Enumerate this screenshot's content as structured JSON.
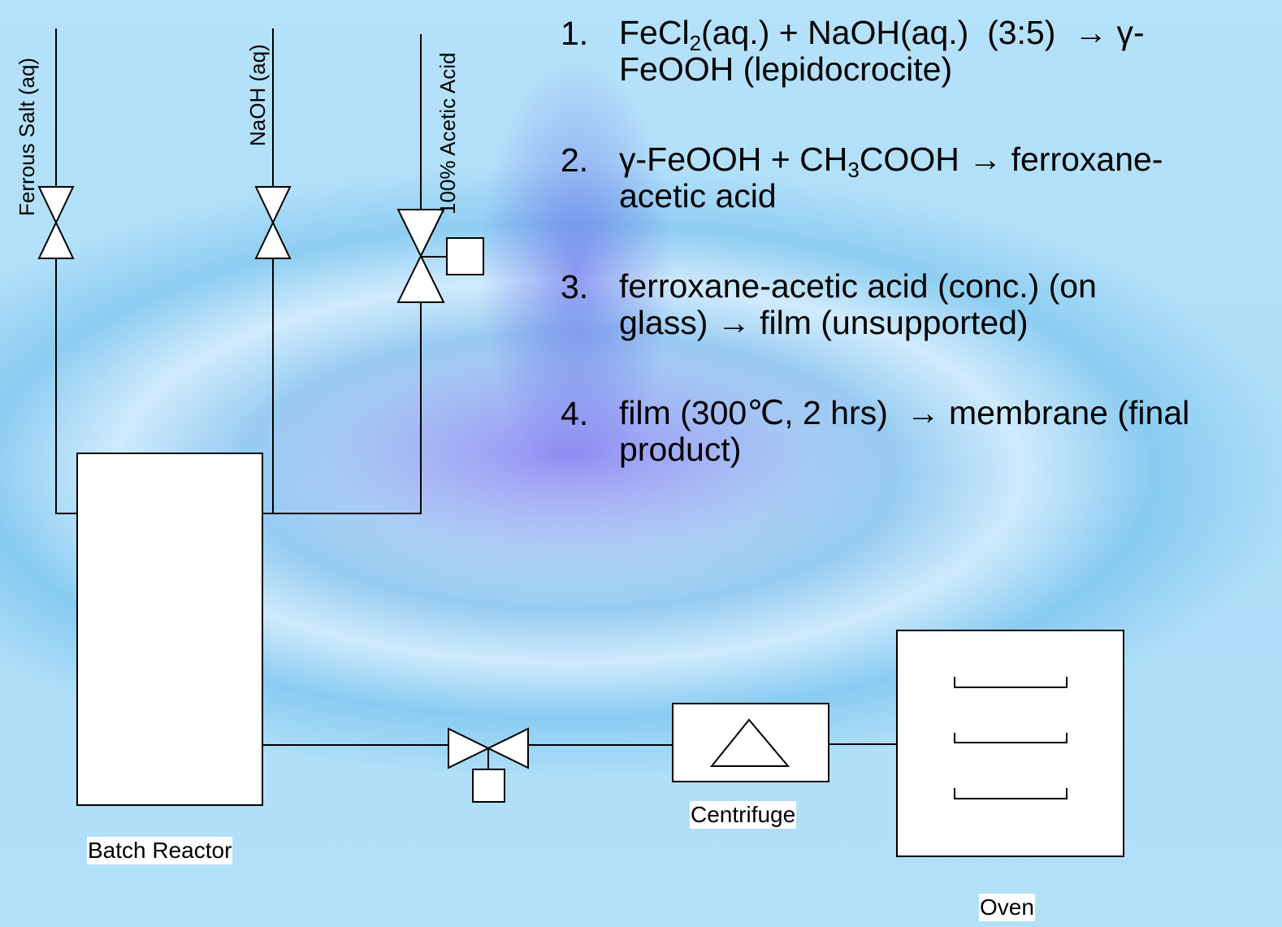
{
  "feeds": [
    {
      "label": "Ferrous Salt (aq)"
    },
    {
      "label": "NaOH (aq)"
    },
    {
      "label": "100% Acetic Acid"
    }
  ],
  "units": {
    "reactor": "Batch Reactor",
    "centrifuge": "Centrifuge",
    "oven": "Oven"
  },
  "steps": [
    {
      "number": "1.",
      "lines": [
        [
          {
            "text": "FeCl"
          },
          {
            "sub": "2"
          },
          {
            "text": "(aq.) + NaOH(aq.)  (3:5)  → γ-"
          }
        ],
        [
          {
            "text": "FeOOH (lepidocrocite)"
          }
        ]
      ]
    },
    {
      "number": "2.",
      "lines": [
        [
          {
            "text": "γ-FeOOH + CH"
          },
          {
            "sub": "3"
          },
          {
            "text": "COOH → ferroxane-"
          }
        ],
        [
          {
            "text": "acetic acid"
          }
        ]
      ]
    },
    {
      "number": "3.",
      "lines": [
        [
          {
            "text": "ferroxane-acetic acid (conc.) (on"
          }
        ],
        [
          {
            "text": "glass) → film (unsupported)"
          }
        ]
      ]
    },
    {
      "number": "4.",
      "lines": [
        [
          {
            "text": "film (300℃, 2 hrs)  → membrane (final"
          }
        ],
        [
          {
            "text": "product)"
          }
        ]
      ]
    }
  ]
}
